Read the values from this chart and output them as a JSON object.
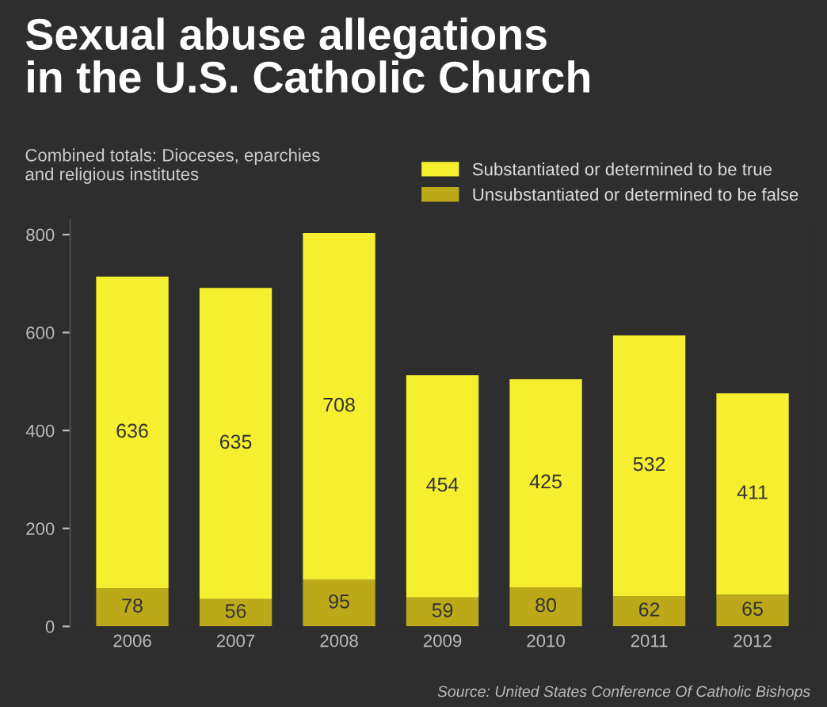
{
  "chart_data": {
    "type": "bar",
    "title": "Sexual abuse allegations\nin the U.S. Catholic Church",
    "subtitle": "Combined totals: Dioceses, eparchies\nand religious institutes",
    "categories": [
      "2006",
      "2007",
      "2008",
      "2009",
      "2010",
      "2011",
      "2012"
    ],
    "series": [
      {
        "name": "Unsubstantiated or determined to be false",
        "color": "#bba91a",
        "values": [
          78,
          56,
          95,
          59,
          80,
          62,
          65
        ]
      },
      {
        "name": "Substantiated or determined to be true",
        "color": "#f6ef2f",
        "values": [
          636,
          635,
          708,
          454,
          425,
          532,
          411
        ]
      }
    ],
    "stacked": true,
    "data_labels": true,
    "ylim": [
      0,
      830
    ],
    "yticks": [
      0,
      200,
      400,
      600,
      800
    ],
    "grid": false,
    "legend": "top right",
    "annotations": [
      "Source: United States Conference Of Catholic Bishops"
    ]
  }
}
